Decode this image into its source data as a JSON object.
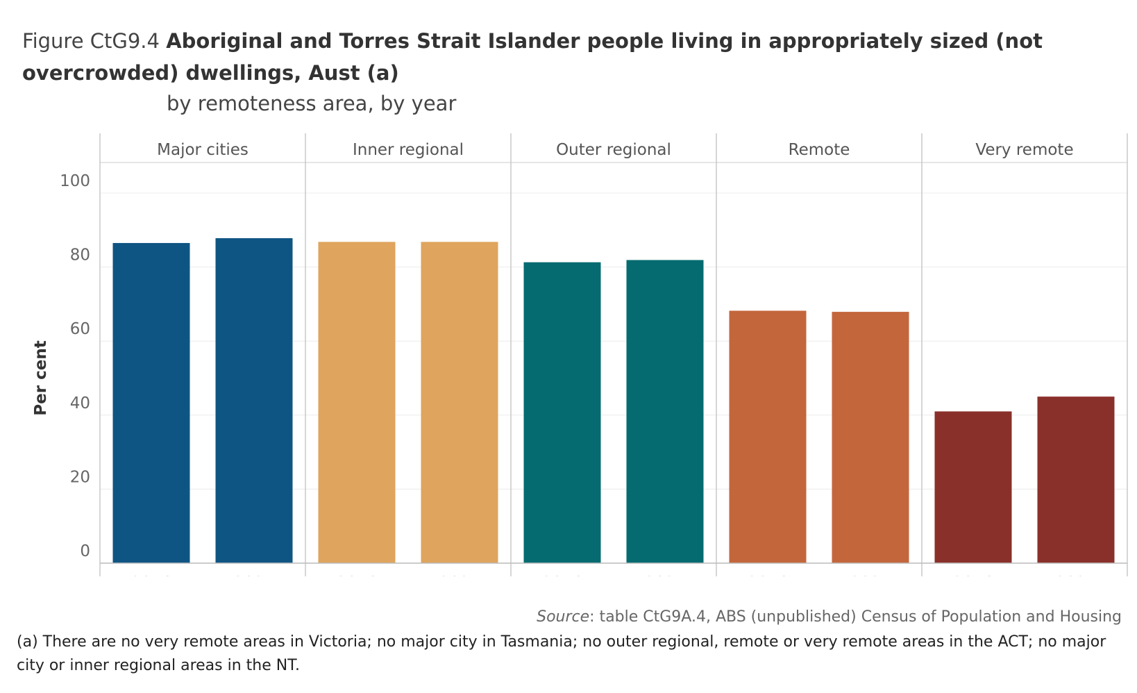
{
  "figure": {
    "prefix": "Figure CtG9.4",
    "title": "Aboriginal and Torres Strait Islander people living in appropriately sized (not overcrowded) dwellings, Aust (a)",
    "subtitle": "by remoteness area, by year"
  },
  "source": {
    "label": "Source",
    "text": ": table CtG9A.4, ABS (unpublished) Census of Population and Housing"
  },
  "footnote": "(a) There are no very remote areas in Victoria; no major city in Tasmania; no outer regional, remote or very remote areas in the ACT; no major city or inner regional areas in the NT.",
  "chart_data": {
    "type": "bar",
    "ylabel": "Per cent",
    "ylim": [
      0,
      100
    ],
    "yticks": [
      0,
      20,
      40,
      60,
      80,
      100
    ],
    "grid": true,
    "x_tick_labels": [
      "2016",
      "2021"
    ],
    "panels": [
      {
        "name": "Major cities",
        "color": "#0f5583",
        "values": [
          86.5,
          87.8
        ]
      },
      {
        "name": "Inner regional",
        "color": "#dfa45e",
        "values": [
          86.8,
          86.8
        ]
      },
      {
        "name": "Outer regional",
        "color": "#056b70",
        "values": [
          81.3,
          81.9
        ]
      },
      {
        "name": "Remote",
        "color": "#c3663c",
        "values": [
          68.2,
          67.9
        ]
      },
      {
        "name": "Very remote",
        "color": "#8a302a",
        "values": [
          41.0,
          45.0
        ]
      }
    ]
  }
}
